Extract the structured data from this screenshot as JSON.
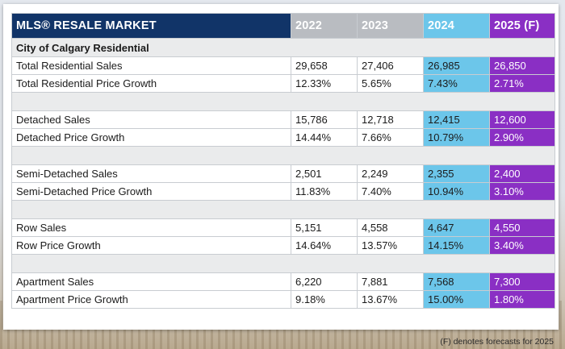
{
  "table": {
    "title": "MLS® RESALE MARKET",
    "columns": [
      "2022",
      "2023",
      "2024",
      "2025 (F)"
    ],
    "section": "City of Calgary Residential",
    "groups": [
      {
        "rows": [
          {
            "label": "Total Residential Sales",
            "values": [
              "29,658",
              "27,406",
              "26,985",
              "26,850"
            ]
          },
          {
            "label": "Total Residential Price Growth",
            "values": [
              "12.33%",
              "5.65%",
              "7.43%",
              "2.71%"
            ]
          }
        ]
      },
      {
        "rows": [
          {
            "label": "Detached Sales",
            "values": [
              "15,786",
              "12,718",
              "12,415",
              "12,600"
            ]
          },
          {
            "label": "Detached Price Growth",
            "values": [
              "14.44%",
              "7.66%",
              "10.79%",
              "2.90%"
            ]
          }
        ]
      },
      {
        "rows": [
          {
            "label": "Semi-Detached Sales",
            "values": [
              "2,501",
              "2,249",
              "2,355",
              "2,400"
            ]
          },
          {
            "label": "Semi-Detached Price Growth",
            "values": [
              "11.83%",
              "7.40%",
              "10.94%",
              "3.10%"
            ]
          }
        ]
      },
      {
        "rows": [
          {
            "label": "Row Sales",
            "values": [
              "5,151",
              "4,558",
              "4,647",
              "4,550"
            ]
          },
          {
            "label": "Row Price Growth",
            "values": [
              "14.64%",
              "13.57%",
              "14.15%",
              "3.40%"
            ]
          }
        ]
      },
      {
        "rows": [
          {
            "label": "Apartment Sales",
            "values": [
              "6,220",
              "7,881",
              "7,568",
              "7,300"
            ]
          },
          {
            "label": "Apartment Price Growth",
            "values": [
              "9.18%",
              "13.67%",
              "15.00%",
              "1.80%"
            ]
          }
        ]
      }
    ]
  },
  "footnote": "(F) denotes forecasts for 2025",
  "colors": {
    "header_navy": "#113468",
    "historical_grey": "#b9bcc1",
    "current_year_blue": "#6cc6ea",
    "forecast_purple": "#8a2fc4",
    "spacer_grey": "#eaebec"
  },
  "chart_data": {
    "type": "table",
    "title": "MLS® RESALE MARKET",
    "section": "City of Calgary Residential",
    "columns": [
      "2022",
      "2023",
      "2024",
      "2025 (F)"
    ],
    "rows": [
      {
        "label": "Total Residential Sales",
        "values": [
          29658,
          27406,
          26985,
          26850
        ]
      },
      {
        "label": "Total Residential Price Growth",
        "values": [
          12.33,
          5.65,
          7.43,
          2.71
        ]
      },
      {
        "label": "Detached Sales",
        "values": [
          15786,
          12718,
          12415,
          12600
        ]
      },
      {
        "label": "Detached Price Growth",
        "values": [
          14.44,
          7.66,
          10.79,
          2.9
        ]
      },
      {
        "label": "Semi-Detached Sales",
        "values": [
          2501,
          2249,
          2355,
          2400
        ]
      },
      {
        "label": "Semi-Detached Price Growth",
        "values": [
          11.83,
          7.4,
          10.94,
          3.1
        ]
      },
      {
        "label": "Row Sales",
        "values": [
          5151,
          4558,
          4647,
          4550
        ]
      },
      {
        "label": "Row Price Growth",
        "values": [
          14.64,
          13.57,
          14.15,
          3.4
        ]
      },
      {
        "label": "Apartment Sales",
        "values": [
          6220,
          7881,
          7568,
          7300
        ]
      },
      {
        "label": "Apartment Price Growth",
        "values": [
          9.18,
          13.67,
          15.0,
          1.8
        ]
      }
    ]
  }
}
